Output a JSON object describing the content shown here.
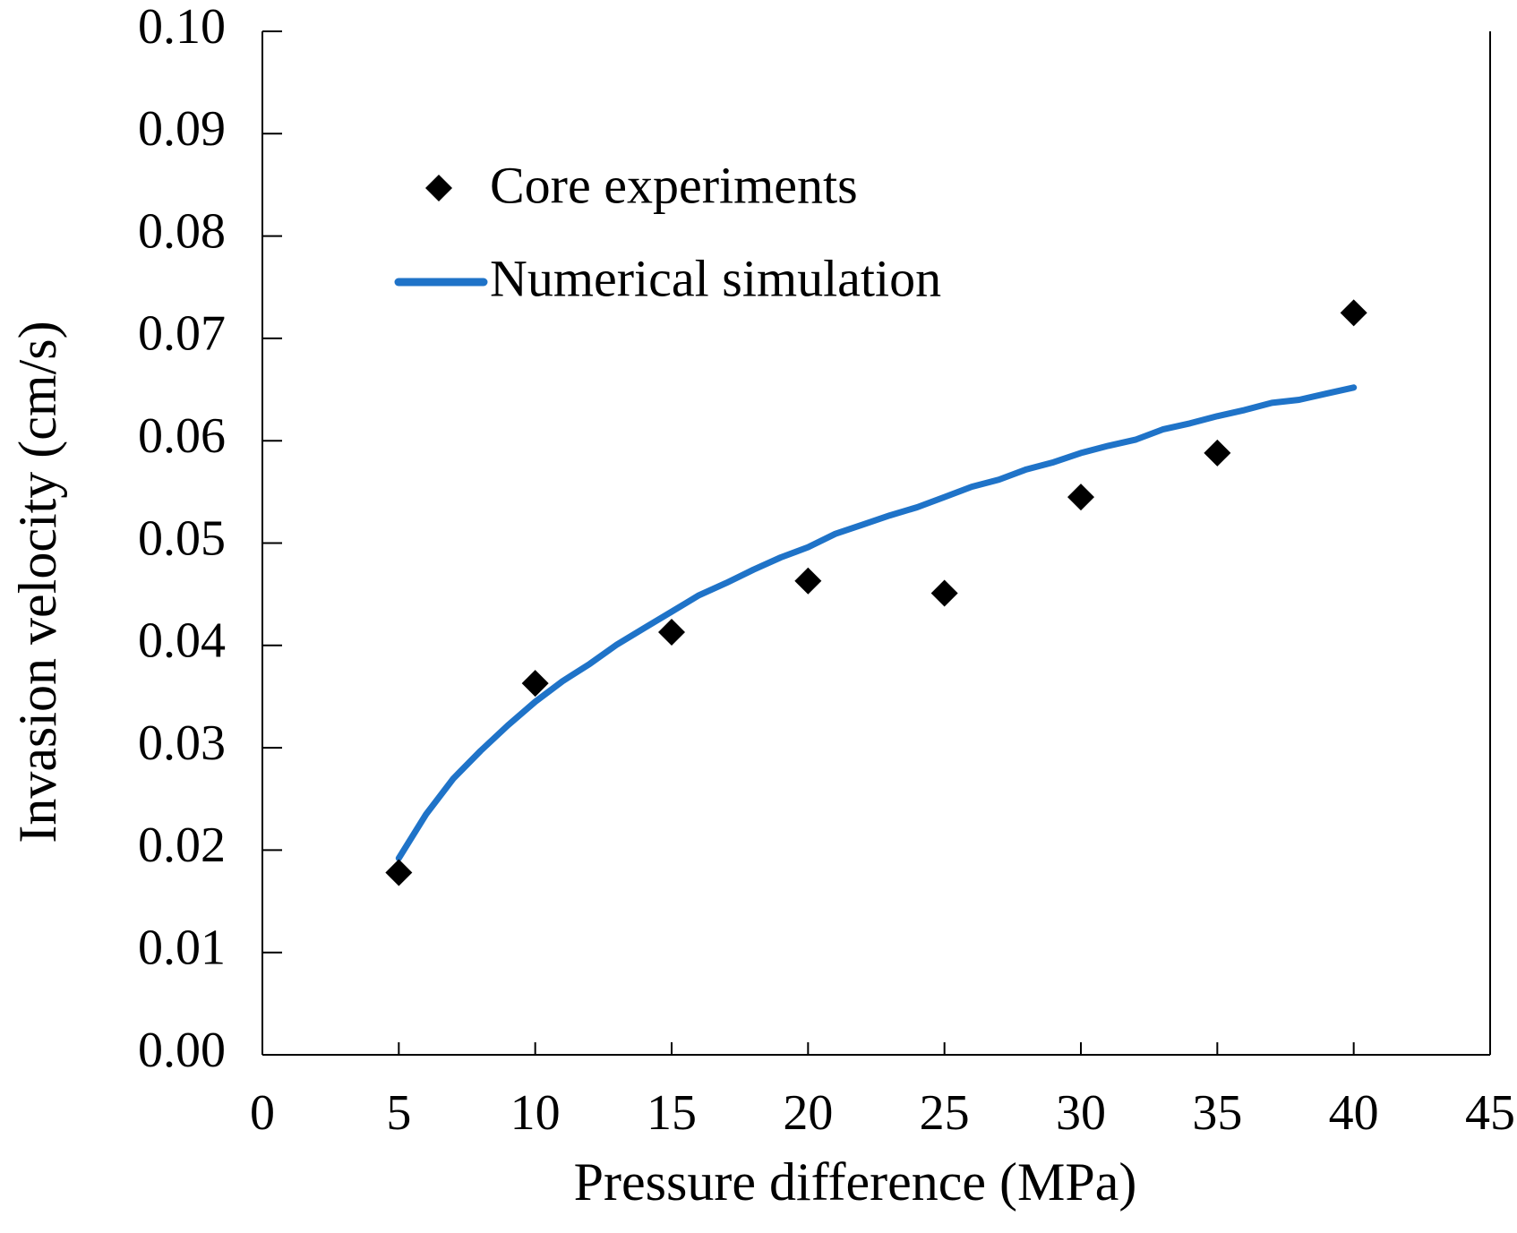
{
  "chart_data": {
    "type": "scatter",
    "title": "",
    "xlabel": "Pressure difference (MPa)",
    "ylabel": "Invasion velocity (cm/s)",
    "xlim": [
      0,
      45
    ],
    "ylim": [
      0,
      0.1
    ],
    "x_ticks": [
      "0",
      "5",
      "10",
      "15",
      "20",
      "25",
      "30",
      "35",
      "40",
      "45"
    ],
    "y_ticks": [
      "0.00",
      "0.01",
      "0.02",
      "0.03",
      "0.04",
      "0.05",
      "0.06",
      "0.07",
      "0.08",
      "0.09",
      "0.10"
    ],
    "grid": false,
    "legend_position": "top-left",
    "series": [
      {
        "name": "Core experiments",
        "kind": "markers",
        "marker": "diamond",
        "color": "#000000",
        "x": [
          5,
          10,
          15,
          20,
          25,
          30,
          35,
          40
        ],
        "y": [
          0.0178,
          0.0363,
          0.0413,
          0.0463,
          0.0451,
          0.0545,
          0.0588,
          0.0725
        ]
      },
      {
        "name": "Numerical simulation",
        "kind": "line",
        "color": "#1f73c8",
        "x": [
          5,
          6,
          7,
          8,
          9,
          10,
          11,
          12,
          13,
          14,
          15,
          16,
          17,
          18,
          19,
          20,
          21,
          22,
          23,
          24,
          25,
          26,
          27,
          28,
          29,
          30,
          31,
          32,
          33,
          34,
          35,
          36,
          37,
          38,
          39,
          40
        ],
        "y": [
          0.0192,
          0.0235,
          0.027,
          0.0297,
          0.0322,
          0.0345,
          0.0365,
          0.0382,
          0.0401,
          0.0417,
          0.0433,
          0.0449,
          0.0461,
          0.0474,
          0.0486,
          0.0496,
          0.0509,
          0.0518,
          0.0527,
          0.0535,
          0.0545,
          0.0555,
          0.0562,
          0.0572,
          0.0579,
          0.0588,
          0.0595,
          0.0601,
          0.0611,
          0.0617,
          0.0624,
          0.063,
          0.0637,
          0.064,
          0.0646,
          0.0652
        ]
      }
    ]
  }
}
